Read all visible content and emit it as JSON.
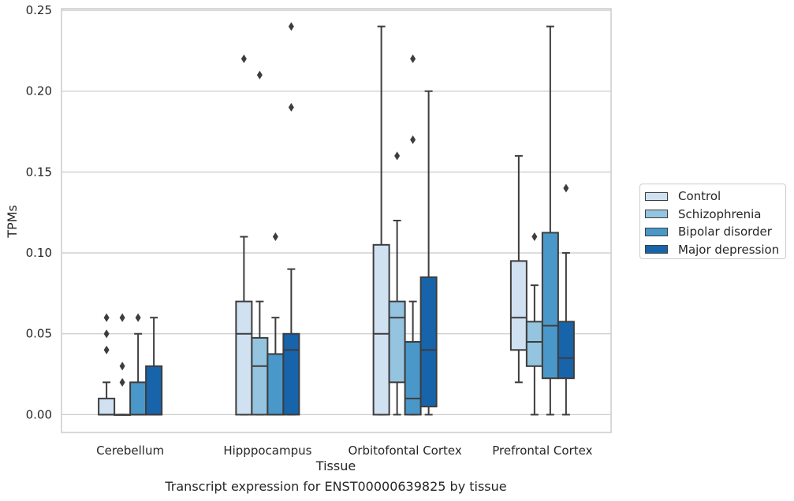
{
  "chart_data": {
    "type": "box",
    "title": "Transcript expression for ENST00000639825 by tissue",
    "xlabel": "Tissue",
    "ylabel": "TPMs",
    "ylim": [
      -0.011,
      0.251
    ],
    "yticks": [
      "0.00",
      "0.05",
      "0.10",
      "0.15",
      "0.20",
      "0.25"
    ],
    "ytick_values": [
      0,
      0.05,
      0.1,
      0.15,
      0.2,
      0.25
    ],
    "grid": "horizontal",
    "legend_position": "right",
    "categories": [
      "Cerebellum",
      "Hipppocampus",
      "Orbitofontal Cortex",
      "Prefrontal Cortex"
    ],
    "series": [
      {
        "name": "Control",
        "color": "#d0e1f2",
        "boxes": [
          {
            "whislo": 0,
            "q1": 0,
            "med": 0,
            "q3": 0.01,
            "whishi": 0.02,
            "fliers": [
              0.04,
              0.05,
              0.06
            ]
          },
          {
            "whislo": 0,
            "q1": 0,
            "med": 0.05,
            "q3": 0.07,
            "whishi": 0.11,
            "fliers": [
              0.22
            ]
          },
          {
            "whislo": 0,
            "q1": 0,
            "med": 0.05,
            "q3": 0.105,
            "whishi": 0.24,
            "fliers": []
          },
          {
            "whislo": 0.02,
            "q1": 0.04,
            "med": 0.06,
            "q3": 0.095,
            "whishi": 0.16,
            "fliers": []
          }
        ]
      },
      {
        "name": "Schizophrenia",
        "color": "#94c4df",
        "boxes": [
          {
            "whislo": 0,
            "q1": 0,
            "med": 0,
            "q3": 0,
            "whishi": 0,
            "fliers": [
              0.02,
              0.03,
              0.06
            ]
          },
          {
            "whislo": 0,
            "q1": 0,
            "med": 0.03,
            "q3": 0.0475,
            "whishi": 0.07,
            "fliers": [
              0.21
            ]
          },
          {
            "whislo": 0,
            "q1": 0.02,
            "med": 0.06,
            "q3": 0.07,
            "whishi": 0.12,
            "fliers": [
              0.16
            ]
          },
          {
            "whislo": 0,
            "q1": 0.03,
            "med": 0.045,
            "q3": 0.0575,
            "whishi": 0.08,
            "fliers": [
              0.11
            ]
          }
        ]
      },
      {
        "name": "Bipolar disorder",
        "color": "#4a98c9",
        "boxes": [
          {
            "whislo": 0,
            "q1": 0,
            "med": 0,
            "q3": 0.02,
            "whishi": 0.05,
            "fliers": [
              0.06
            ]
          },
          {
            "whislo": 0,
            "q1": 0,
            "med": 0,
            "q3": 0.0375,
            "whishi": 0.06,
            "fliers": [
              0.11
            ]
          },
          {
            "whislo": 0,
            "q1": 0,
            "med": 0.01,
            "q3": 0.045,
            "whishi": 0.07,
            "fliers": [
              0.17,
              0.22
            ]
          },
          {
            "whislo": 0,
            "q1": 0.0225,
            "med": 0.055,
            "q3": 0.1125,
            "whishi": 0.24,
            "fliers": []
          }
        ]
      },
      {
        "name": "Major depression",
        "color": "#1764ab",
        "boxes": [
          {
            "whislo": 0,
            "q1": 0,
            "med": 0,
            "q3": 0.03,
            "whishi": 0.06,
            "fliers": []
          },
          {
            "whislo": 0,
            "q1": 0,
            "med": 0.04,
            "q3": 0.05,
            "whishi": 0.09,
            "fliers": [
              0.19,
              0.24
            ]
          },
          {
            "whislo": 0,
            "q1": 0.005,
            "med": 0.04,
            "q3": 0.085,
            "whishi": 0.2,
            "fliers": []
          },
          {
            "whislo": 0,
            "q1": 0.0225,
            "med": 0.035,
            "q3": 0.0575,
            "whishi": 0.1,
            "fliers": [
              0.14
            ]
          }
        ]
      }
    ]
  }
}
